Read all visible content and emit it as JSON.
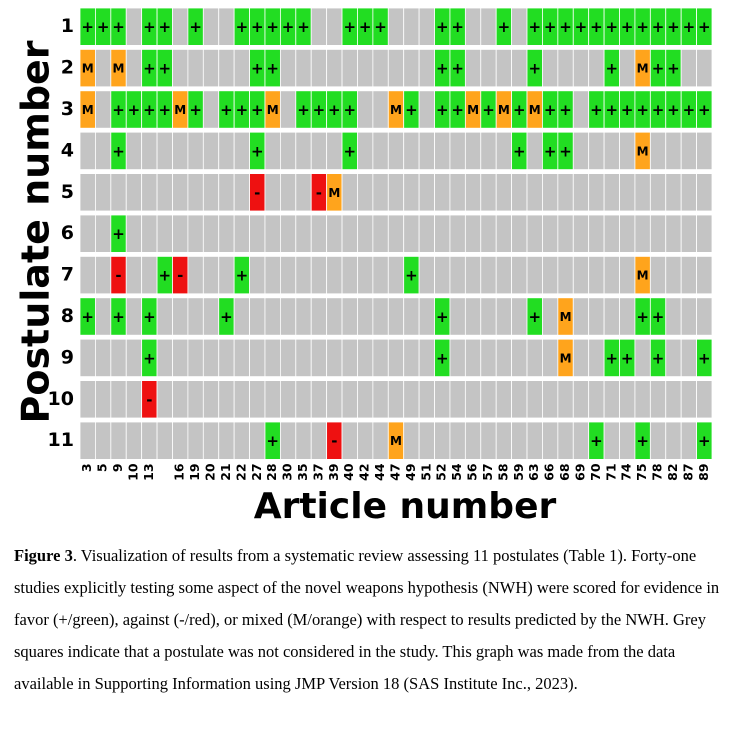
{
  "chart_data": {
    "type": "heatmap",
    "x_title": "Article number",
    "y_title": "Postulate number",
    "x": [
      "3",
      "5",
      "9",
      "10",
      "13",
      null,
      "16",
      "19",
      "20",
      "21",
      "22",
      "27",
      "28",
      "30",
      "35",
      "37",
      "39",
      "40",
      "42",
      "44",
      "47",
      "49",
      "51",
      "52",
      "54",
      "56",
      "57",
      "58",
      "59",
      "63",
      "66",
      "68",
      "69",
      "70",
      "71",
      "74",
      "75",
      "78",
      "82",
      "87",
      "89"
    ],
    "y": [
      "1",
      "2",
      "3",
      "4",
      "5",
      "6",
      "7",
      "8",
      "9",
      "10",
      "11"
    ],
    "color_map": {
      "+": "#22dd22",
      "-": "#ee1111",
      "M": "#ffa41c"
    },
    "missing_color": "#c4c4c4",
    "cells": [
      [
        "+",
        "+",
        "+",
        null,
        "+",
        "+",
        null,
        "+",
        null,
        null,
        "+",
        "+",
        "+",
        "+",
        "+",
        null,
        null,
        "+",
        "+",
        "+",
        null,
        null,
        null,
        "+",
        "+",
        null,
        null,
        "+",
        null,
        "+",
        "+",
        "+",
        "+",
        "+",
        "+",
        "+",
        "+",
        "+",
        "+",
        "+",
        "+"
      ],
      [
        "M",
        null,
        "M",
        null,
        "+",
        "+",
        null,
        null,
        null,
        null,
        null,
        "+",
        "+",
        null,
        null,
        null,
        null,
        null,
        null,
        null,
        null,
        null,
        null,
        "+",
        "+",
        null,
        null,
        null,
        null,
        "+",
        null,
        null,
        null,
        null,
        "+",
        null,
        "M",
        "+",
        "+",
        null,
        null
      ],
      [
        "M",
        null,
        "+",
        "+",
        "+",
        "+",
        "M",
        "+",
        null,
        "+",
        "+",
        "+",
        "M",
        null,
        "+",
        "+",
        "+",
        "+",
        null,
        null,
        "M",
        "+",
        null,
        "+",
        "+",
        "M",
        "+",
        "M",
        "+",
        "M",
        "+",
        "+",
        null,
        "+",
        "+",
        "+",
        "+",
        "+",
        "+",
        "+",
        "+"
      ],
      [
        null,
        null,
        "+",
        null,
        null,
        null,
        null,
        null,
        null,
        null,
        null,
        "+",
        null,
        null,
        null,
        null,
        null,
        "+",
        null,
        null,
        null,
        null,
        null,
        null,
        null,
        null,
        null,
        null,
        "+",
        null,
        "+",
        "+",
        null,
        null,
        null,
        null,
        "M",
        null,
        null,
        null,
        null
      ],
      [
        null,
        null,
        null,
        null,
        null,
        null,
        null,
        null,
        null,
        null,
        null,
        "-",
        null,
        null,
        null,
        "-",
        "M",
        null,
        null,
        null,
        null,
        null,
        null,
        null,
        null,
        null,
        null,
        null,
        null,
        null,
        null,
        null,
        null,
        null,
        null,
        null,
        null,
        null,
        null,
        null,
        null
      ],
      [
        null,
        null,
        "+",
        null,
        null,
        null,
        null,
        null,
        null,
        null,
        null,
        null,
        null,
        null,
        null,
        null,
        null,
        null,
        null,
        null,
        null,
        null,
        null,
        null,
        null,
        null,
        null,
        null,
        null,
        null,
        null,
        null,
        null,
        null,
        null,
        null,
        null,
        null,
        null,
        null,
        null
      ],
      [
        null,
        null,
        "-",
        null,
        null,
        "+",
        "-",
        null,
        null,
        null,
        "+",
        null,
        null,
        null,
        null,
        null,
        null,
        null,
        null,
        null,
        null,
        "+",
        null,
        null,
        null,
        null,
        null,
        null,
        null,
        null,
        null,
        null,
        null,
        null,
        null,
        null,
        "M",
        null,
        null,
        null,
        null
      ],
      [
        "+",
        null,
        "+",
        null,
        "+",
        null,
        null,
        null,
        null,
        "+",
        null,
        null,
        null,
        null,
        null,
        null,
        null,
        null,
        null,
        null,
        null,
        null,
        null,
        "+",
        null,
        null,
        null,
        null,
        null,
        "+",
        null,
        "M",
        null,
        null,
        null,
        null,
        "+",
        "+",
        null,
        null,
        null
      ],
      [
        null,
        null,
        null,
        null,
        "+",
        null,
        null,
        null,
        null,
        null,
        null,
        null,
        null,
        null,
        null,
        null,
        null,
        null,
        null,
        null,
        null,
        null,
        null,
        "+",
        null,
        null,
        null,
        null,
        null,
        null,
        null,
        "M",
        null,
        null,
        "+",
        "+",
        null,
        "+",
        null,
        null,
        "+"
      ],
      [
        null,
        null,
        null,
        null,
        "-",
        null,
        null,
        null,
        null,
        null,
        null,
        null,
        null,
        null,
        null,
        null,
        null,
        null,
        null,
        null,
        null,
        null,
        null,
        null,
        null,
        null,
        null,
        null,
        null,
        null,
        null,
        null,
        null,
        null,
        null,
        null,
        null,
        null,
        null,
        null,
        null
      ],
      [
        null,
        null,
        null,
        null,
        null,
        null,
        null,
        null,
        null,
        null,
        null,
        null,
        "+",
        null,
        null,
        null,
        "-",
        null,
        null,
        null,
        "M",
        null,
        null,
        null,
        null,
        null,
        null,
        null,
        null,
        null,
        null,
        null,
        null,
        "+",
        null,
        null,
        "+",
        null,
        null,
        null,
        "+"
      ]
    ]
  },
  "caption": {
    "label": "Figure 3",
    "text": ". Visualization of results from a systematic review assessing 11 postulates (Table 1). Forty-one studies explicitly testing some aspect of the novel weapons hypothesis (NWH) were scored for evidence in favor (+/green), against (-/red), or mixed (M/orange) with respect to results predicted by the NWH. Grey squares indicate that a postulate was not considered in the study. This graph was made from the data available in Supporting Information using JMP Version 18 (SAS Institute Inc., 2023)."
  }
}
